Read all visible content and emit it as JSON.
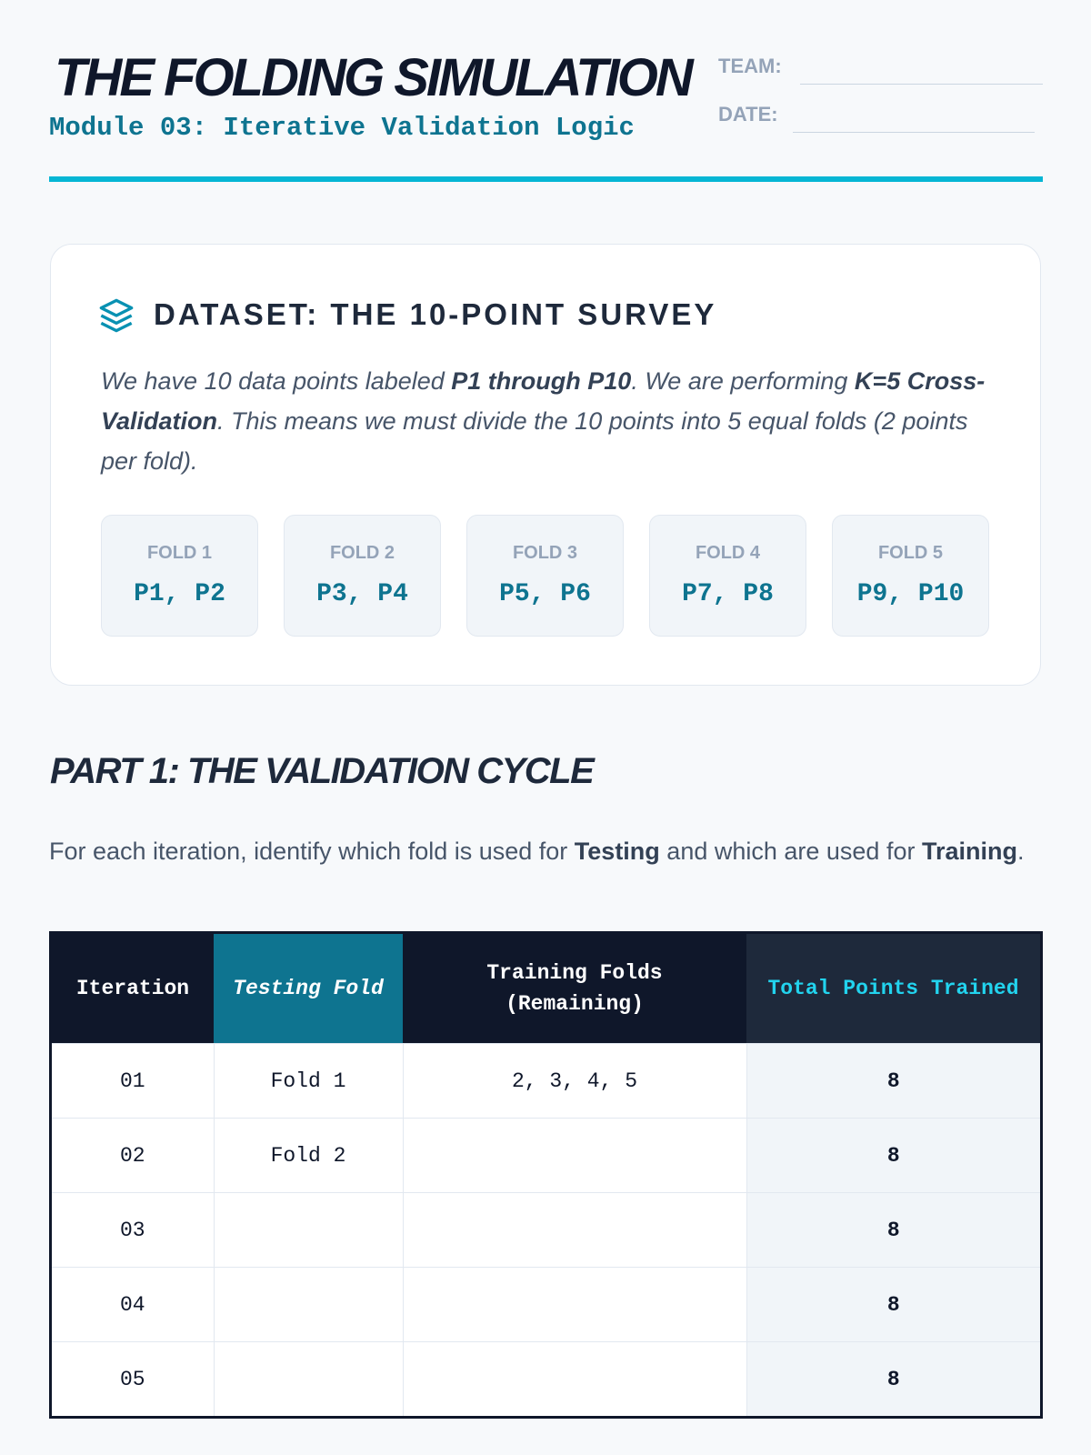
{
  "header": {
    "title": "THE FOLDING SIMULATION",
    "subtitle": "Module 03: Iterative Validation Logic",
    "fields": [
      "TEAM:",
      "DATE:"
    ]
  },
  "dataset": {
    "title": "DATASET: THE 10-POINT SURVEY",
    "description": [
      "We have 10 data points labeled ",
      "P1 through P10",
      ". We are performing ",
      "K=5 Cross-Validation",
      ". This means we must divide the 10 points into 5 equal folds (2 points per fold)."
    ],
    "folds": [
      {
        "label": "FOLD 1",
        "points": "P1, P2"
      },
      {
        "label": "FOLD 2",
        "points": "P3, P4"
      },
      {
        "label": "FOLD 3",
        "points": "P5, P6"
      },
      {
        "label": "FOLD 4",
        "points": "P7, P8"
      },
      {
        "label": "FOLD 5",
        "points": "P9, P10"
      }
    ]
  },
  "part1": {
    "title": "PART 1: THE VALIDATION CYCLE",
    "instruction": [
      "For each iteration, identify which fold is used for ",
      "Testing",
      " and which are used for ",
      "Training",
      "."
    ],
    "table": {
      "headers": [
        "Iteration",
        "Testing Fold",
        "Training Folds (Remaining)",
        "Total Points Trained"
      ],
      "rows": [
        [
          "01",
          "Fold 1",
          "2, 3, 4, 5",
          8
        ],
        [
          "02",
          "Fold 2",
          null,
          8
        ],
        [
          "03",
          null,
          null,
          8
        ],
        [
          "04",
          null,
          null,
          8
        ],
        [
          "05",
          null,
          null,
          8
        ]
      ]
    }
  }
}
